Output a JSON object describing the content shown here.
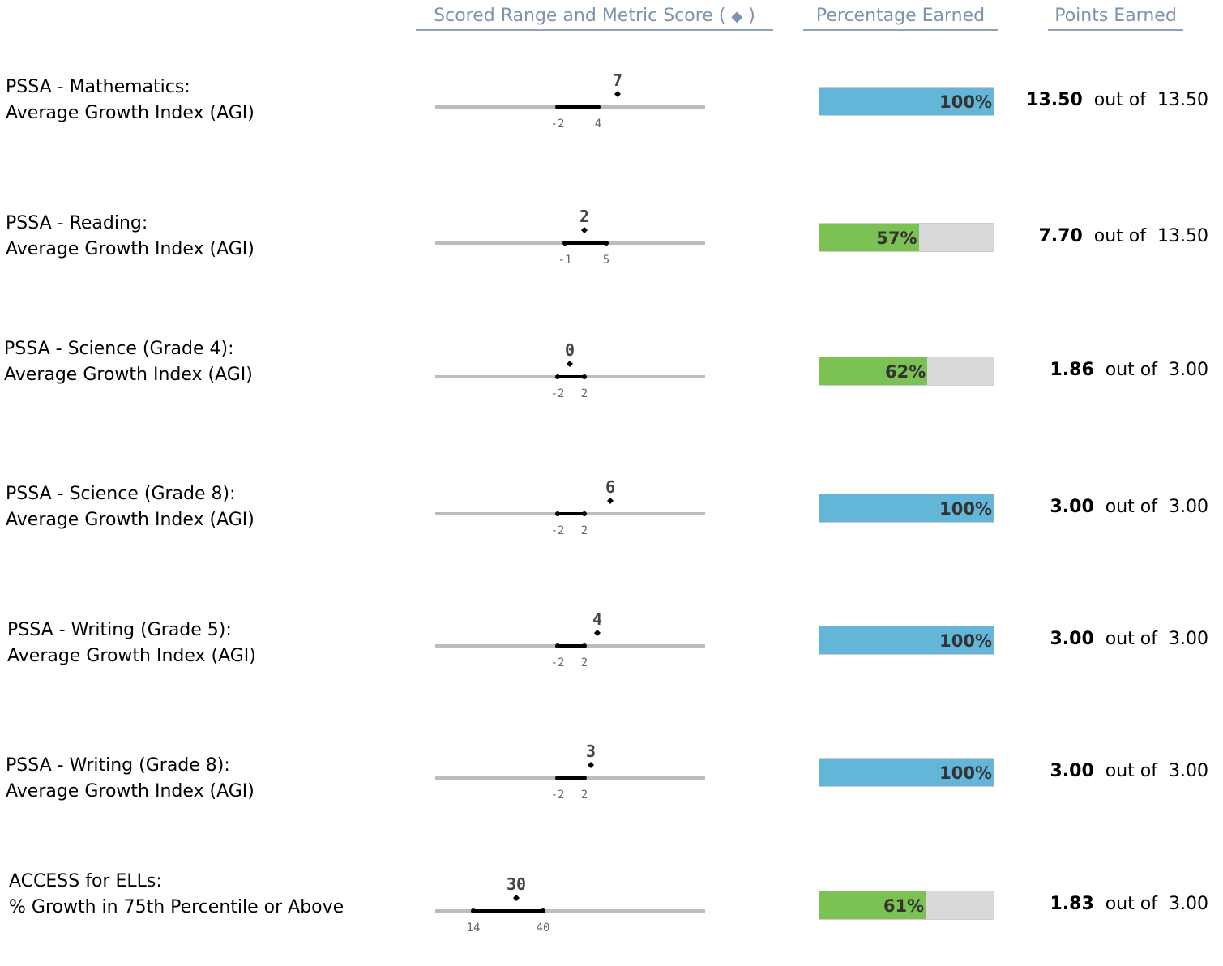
{
  "headers": {
    "scored_range": "Scored Range and Metric Score",
    "scored_range_paren_open": "(",
    "scored_range_diamond": "◆",
    "scored_range_paren_close": ")",
    "percentage_earned": "Percentage Earned",
    "points_earned": "Points Earned"
  },
  "colors": {
    "full": "#64b6d9",
    "partial": "#7bc153",
    "empty": "#d9d9d9",
    "header_text": "#7e93ad"
  },
  "rows": [
    {
      "label1": "PSSA - Mathematics:",
      "label2": "Average Growth Index (AGI)",
      "range_low": "-2",
      "range_high": "4",
      "score": "7",
      "low_val": -2,
      "high_val": 4,
      "score_val": 7,
      "percent_text": "100%",
      "percent": 100,
      "earned": "13.50",
      "out_of": "out of",
      "total": "13.50"
    },
    {
      "label1": "PSSA - Reading:",
      "label2": "Average Growth Index (AGI)",
      "range_low": "-1",
      "range_high": "5",
      "score": "2",
      "low_val": -1,
      "high_val": 5,
      "score_val": 2,
      "percent_text": "57%",
      "percent": 57,
      "earned": "7.70",
      "out_of": "out of",
      "total": "13.50"
    },
    {
      "label1": "PSSA - Science (Grade 4):",
      "label2": "Average Growth Index (AGI)",
      "range_low": "-2",
      "range_high": "2",
      "score": "0",
      "low_val": -2,
      "high_val": 2,
      "score_val": 0,
      "percent_text": "62%",
      "percent": 62,
      "earned": "1.86",
      "out_of": "out of",
      "total": "3.00"
    },
    {
      "label1": "PSSA - Science (Grade 8):",
      "label2": "Average Growth Index (AGI)",
      "range_low": "-2",
      "range_high": "2",
      "score": "6",
      "low_val": -2,
      "high_val": 2,
      "score_val": 6,
      "percent_text": "100%",
      "percent": 100,
      "earned": "3.00",
      "out_of": "out of",
      "total": "3.00"
    },
    {
      "label1": "PSSA - Writing (Grade 5):",
      "label2": "Average Growth Index (AGI)",
      "range_low": "-2",
      "range_high": "2",
      "score": "4",
      "low_val": -2,
      "high_val": 2,
      "score_val": 4,
      "percent_text": "100%",
      "percent": 100,
      "earned": "3.00",
      "out_of": "out of",
      "total": "3.00"
    },
    {
      "label1": "PSSA - Writing (Grade 8):",
      "label2": "Average Growth Index (AGI)",
      "range_low": "-2",
      "range_high": "2",
      "score": "3",
      "low_val": -2,
      "high_val": 2,
      "score_val": 3,
      "percent_text": "100%",
      "percent": 100,
      "earned": "3.00",
      "out_of": "out of",
      "total": "3.00"
    },
    {
      "label1": "ACCESS for ELLs:",
      "label2": "% Growth in 75th Percentile or Above",
      "range_low": "14",
      "range_high": "40",
      "score": "30",
      "low_val": 14,
      "high_val": 40,
      "score_val": 30,
      "percent_text": "61%",
      "percent": 61,
      "earned": "1.83",
      "out_of": "out of",
      "total": "3.00"
    }
  ]
}
